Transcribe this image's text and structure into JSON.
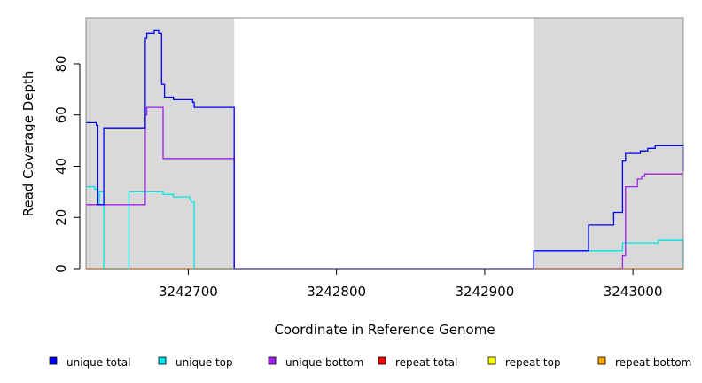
{
  "chart_data": {
    "type": "line",
    "title": "",
    "xlabel": "Coordinate in Reference Genome",
    "ylabel": "Read Coverage Depth",
    "xlim": [
      3242631,
      3243034
    ],
    "ylim": [
      0,
      98
    ],
    "x_ticks": [
      3242700,
      3242800,
      3242900,
      3243000
    ],
    "x_tick_labels": [
      "3242700",
      "3242800",
      "3242900",
      "3243000"
    ],
    "y_ticks": [
      0,
      20,
      40,
      60,
      80
    ],
    "y_tick_labels": [
      "0",
      "20",
      "40",
      "60",
      "80"
    ],
    "grid": false,
    "legend_position": "bottom",
    "shaded_regions": [
      {
        "x0": 3242631,
        "x1": 3242731,
        "color": "#d9d9d9"
      },
      {
        "x0": 3242933,
        "x1": 3243034,
        "color": "#d9d9d9"
      }
    ],
    "series": [
      {
        "name": "unique total",
        "color": "#0000ff",
        "x": [
          3242631,
          3242638,
          3242639,
          3242643,
          3242670,
          3242671,
          3242672,
          3242677,
          3242680,
          3242682,
          3242684,
          3242690,
          3242703,
          3242704,
          3242731,
          3242731,
          3242933,
          3242933,
          3242948,
          3242955,
          3242962,
          3242970,
          3242980,
          3242987,
          3242993,
          3242995,
          3243005,
          3243010,
          3243015,
          3243034,
          3243034
        ],
        "y": [
          57,
          56,
          25,
          55,
          55,
          90,
          92,
          93,
          92,
          72,
          67,
          66,
          65,
          63,
          38,
          0,
          0,
          7,
          7,
          7,
          7,
          17,
          17,
          22,
          42,
          45,
          46,
          47,
          48,
          48,
          38
        ]
      },
      {
        "name": "unique top",
        "color": "#00e5e5",
        "x": [
          3242631,
          3242637,
          3242639,
          3242640,
          3242643,
          3242660,
          3242673,
          3242683,
          3242690,
          3242701,
          3242702,
          3242704,
          3242730,
          3242731,
          3242933,
          3242933,
          3242990,
          3242993,
          3243000,
          3243011,
          3243017,
          3243034,
          3243034
        ],
        "y": [
          32,
          31,
          25,
          30,
          0,
          30,
          30,
          29,
          28,
          27,
          26,
          0,
          0,
          0,
          0,
          7,
          7,
          10,
          10,
          10,
          11,
          11,
          0
        ]
      },
      {
        "name": "unique bottom",
        "color": "#a020f0",
        "x": [
          3242631,
          3242670,
          3242671,
          3242672,
          3242679,
          3242683,
          3242731,
          3242731,
          3242933,
          3242986,
          3242993,
          3242995,
          3243003,
          3243006,
          3243008,
          3243034
        ],
        "y": [
          25,
          25,
          60,
          63,
          63,
          43,
          38,
          0,
          0,
          0,
          5,
          32,
          35,
          36,
          37,
          37
        ]
      },
      {
        "name": "repeat total",
        "color": "#ff0000",
        "x": [
          3242631,
          3243034
        ],
        "y": [
          0,
          0
        ]
      },
      {
        "name": "repeat top",
        "color": "#ffff00",
        "x": [
          3242631,
          3243034
        ],
        "y": [
          0,
          0
        ]
      },
      {
        "name": "repeat bottom",
        "color": "#ffa500",
        "x": [
          3242631,
          3243034
        ],
        "y": [
          0,
          0
        ]
      }
    ]
  }
}
